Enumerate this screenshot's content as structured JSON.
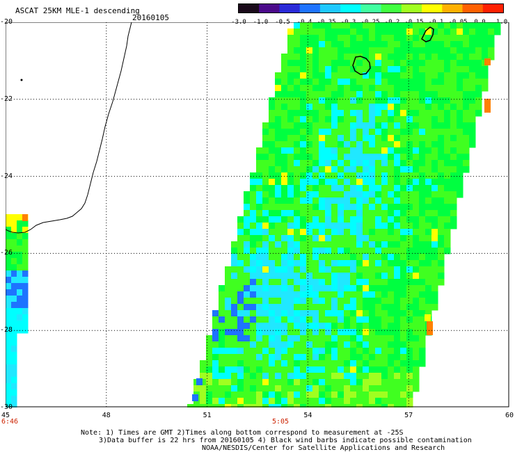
{
  "header": {
    "title": "ASCAT 25KM MLE-1 descending",
    "date": "20160105"
  },
  "colorbar": {
    "labels": [
      "-3.0",
      "-1.0",
      "-0.5",
      "-0.4",
      "-0.35",
      "-0.3",
      "-0.25",
      "-0.2",
      "-0.15",
      "-0.1",
      "-0.05",
      "0.0",
      "1.0"
    ],
    "colors": [
      "#1a0a1a",
      "#4b0a8a",
      "#2a2ad8",
      "#1e73ff",
      "#1ec8ff",
      "#00ffff",
      "#40ffa0",
      "#40ff40",
      "#a0ff20",
      "#ffff00",
      "#ffb000",
      "#ff6000",
      "#ff2000"
    ]
  },
  "axes": {
    "lat_labels": [
      "-20",
      "-22",
      "-24",
      "-26",
      "-28",
      "-30"
    ],
    "lon_labels": [
      "45",
      "48",
      "51",
      "54",
      "57",
      "60"
    ],
    "lat_range": [
      -30,
      -20
    ],
    "lon_range": [
      45,
      60
    ]
  },
  "time_labels": [
    "6:46",
    "5:05"
  ],
  "notes": [
    "Note: 1) Times are GMT 2)Times along bottom correspond to measurement at -25S",
    "3)Data buffer is 22 hrs from 20160105 4) Black wind barbs indicate possible contamination",
    "NOAA/NESDIS/Center for Satellite Applications and Research"
  ],
  "palette": {
    "cyan": "#00ffff",
    "aqua": "#20e8ff",
    "blue": "#1e73ff",
    "green": "#00ff40",
    "lime": "#40ff20",
    "yellow_green": "#a0ff20",
    "yellow": "#ffff00",
    "orange": "#ff8000"
  }
}
